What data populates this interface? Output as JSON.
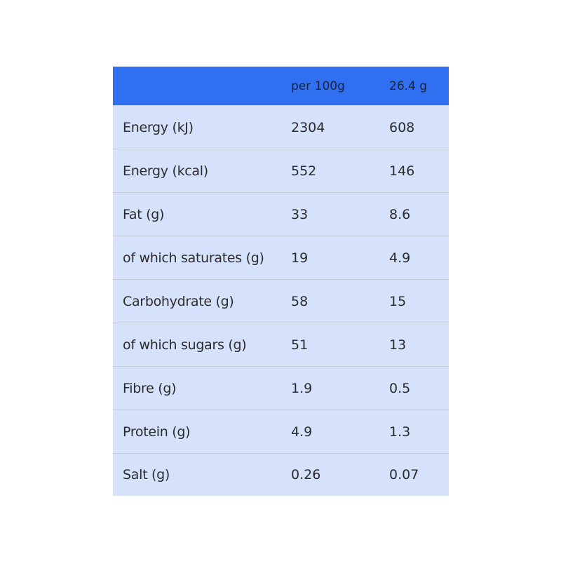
{
  "table": {
    "header": {
      "label": "",
      "per100": "per 100g",
      "portion": "26.4 g"
    },
    "rows": [
      {
        "label": "Energy (kJ)",
        "per100": "2304",
        "portion": "608"
      },
      {
        "label": "Energy (kcal)",
        "per100": "552",
        "portion": "146"
      },
      {
        "label": "Fat (g)",
        "per100": "33",
        "portion": "8.6"
      },
      {
        "label": "of which saturates (g)",
        "per100": "19",
        "portion": "4.9"
      },
      {
        "label": "Carbohydrate (g)",
        "per100": "58",
        "portion": "15"
      },
      {
        "label": "of which sugars (g)",
        "per100": "51",
        "portion": "13"
      },
      {
        "label": "Fibre (g)",
        "per100": "1.9",
        "portion": "0.5"
      },
      {
        "label": "Protein (g)",
        "per100": "4.9",
        "portion": "1.3"
      },
      {
        "label": "Salt (g)",
        "per100": "0.26",
        "portion": "0.07"
      }
    ]
  },
  "colors": {
    "header_bg": "#2f6ff0",
    "body_bg": "#d6e2fc",
    "text": "#2b2b2b"
  }
}
